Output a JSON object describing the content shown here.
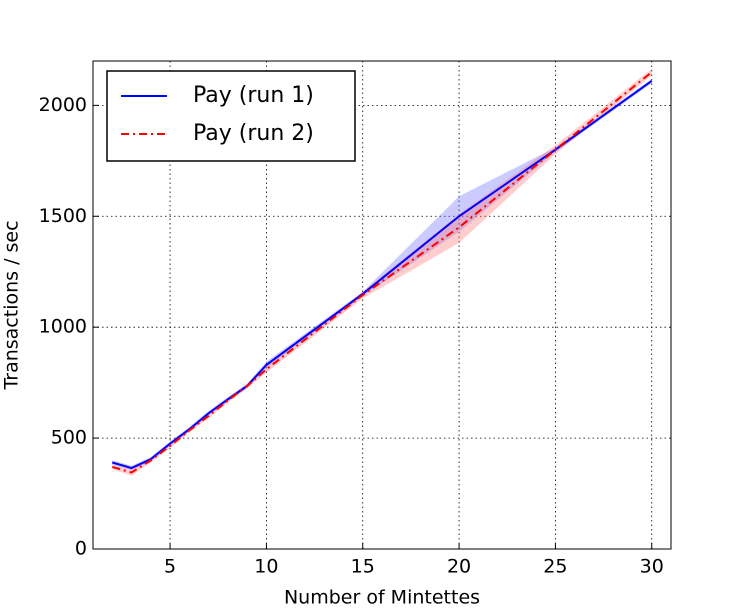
{
  "chart_data": {
    "type": "line",
    "xlabel": "Number of Mintettes",
    "ylabel": "Transactions / sec",
    "x": [
      2,
      3,
      4,
      5,
      6,
      7,
      8,
      9,
      10,
      15,
      20,
      25,
      30
    ],
    "series": [
      {
        "name": "Pay (run 1)",
        "color": "#0000ff",
        "dash": "solid",
        "band_color": "#6a6aff",
        "values": [
          390,
          365,
          405,
          475,
          540,
          612,
          675,
          735,
          830,
          1150,
          1500,
          1800,
          2110
        ],
        "lower": [
          380,
          355,
          395,
          465,
          530,
          602,
          665,
          725,
          815,
          1140,
          1430,
          1790,
          2100
        ],
        "upper": [
          400,
          375,
          415,
          485,
          550,
          622,
          685,
          745,
          845,
          1160,
          1590,
          1810,
          2120
        ]
      },
      {
        "name": "Pay (run 2)",
        "color": "#ff0000",
        "dash": "dashdot",
        "band_color": "#ff7070",
        "values": [
          370,
          345,
          400,
          465,
          535,
          600,
          670,
          735,
          810,
          1145,
          1450,
          1800,
          2150
        ],
        "lower": [
          360,
          330,
          390,
          455,
          525,
          590,
          660,
          725,
          795,
          1130,
          1380,
          1780,
          2135
        ],
        "upper": [
          380,
          360,
          410,
          475,
          545,
          610,
          680,
          745,
          825,
          1160,
          1510,
          1820,
          2165
        ]
      }
    ],
    "xlim": [
      1,
      31
    ],
    "ylim": [
      0,
      2200
    ],
    "xticks": [
      5,
      10,
      15,
      20,
      25,
      30
    ],
    "yticks": [
      0,
      500,
      1000,
      1500,
      2000
    ],
    "grid": true,
    "legend": "upper left"
  }
}
